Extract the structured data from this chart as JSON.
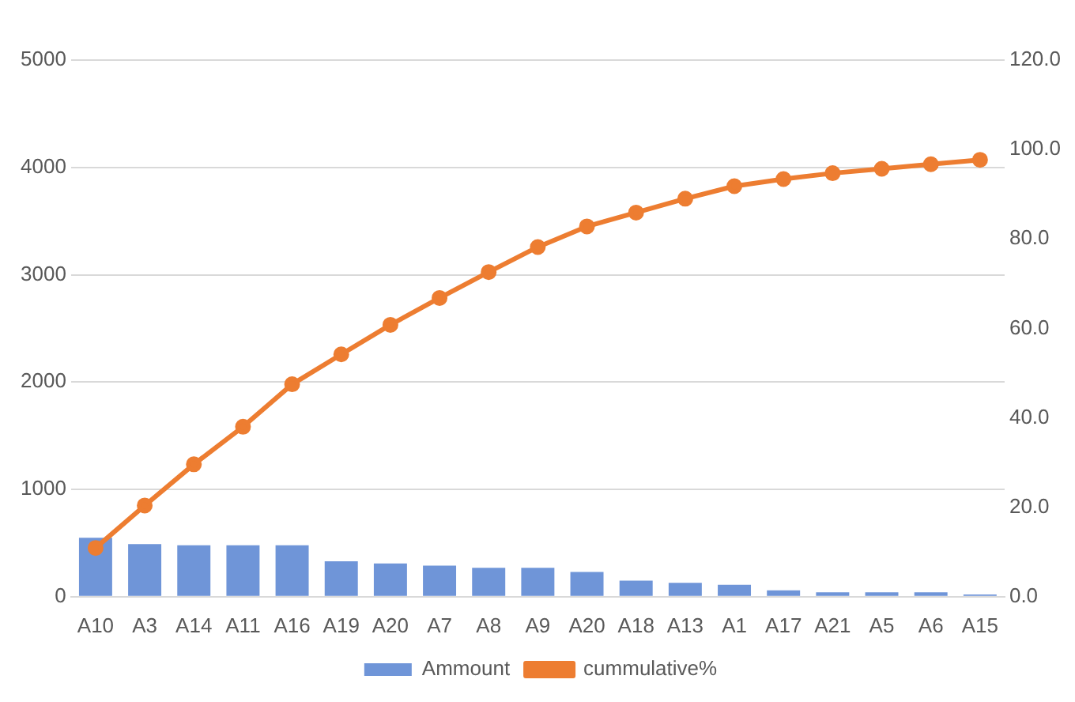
{
  "chart_data": {
    "type": "bar",
    "categories": [
      "A10",
      "A3",
      "A14",
      "A11",
      "A16",
      "A19",
      "A20",
      "A7",
      "A8",
      "A9",
      "A20",
      "A18",
      "A13",
      "A1",
      "A17",
      "A21",
      "A5",
      "A6",
      "A15"
    ],
    "series": [
      {
        "name": "Ammount",
        "color": "#6f95d8",
        "values": [
          550,
          490,
          480,
          480,
          480,
          330,
          310,
          290,
          270,
          270,
          230,
          150,
          130,
          110,
          60,
          40,
          40,
          40,
          20
        ]
      },
      {
        "name": "cummulative%",
        "type": "line",
        "axis": "y2",
        "color": "#ed7d31",
        "values": [
          10.9,
          20.4,
          29.6,
          38.0,
          47.5,
          54.2,
          60.8,
          66.8,
          72.6,
          78.2,
          82.8,
          85.9,
          89.0,
          91.8,
          93.4,
          94.7,
          95.7,
          96.7,
          97.7
        ]
      }
    ],
    "ylim": [
      0,
      5000
    ],
    "yticks": [
      0,
      1000,
      2000,
      3000,
      4000,
      5000
    ],
    "y2lim": [
      0,
      120
    ],
    "y2ticks": [
      {
        "value": 0,
        "label": "0.0"
      },
      {
        "value": 20,
        "label": "20.0"
      },
      {
        "value": 40,
        "label": "40.0"
      },
      {
        "value": 60,
        "label": "60.0"
      },
      {
        "value": 80,
        "label": "80.0"
      },
      {
        "value": 100,
        "label": "100.0"
      },
      {
        "value": 120,
        "label": "120.0"
      }
    ],
    "grid": "y",
    "legend": "bottom",
    "marker": "circle",
    "line_style": "solid"
  }
}
